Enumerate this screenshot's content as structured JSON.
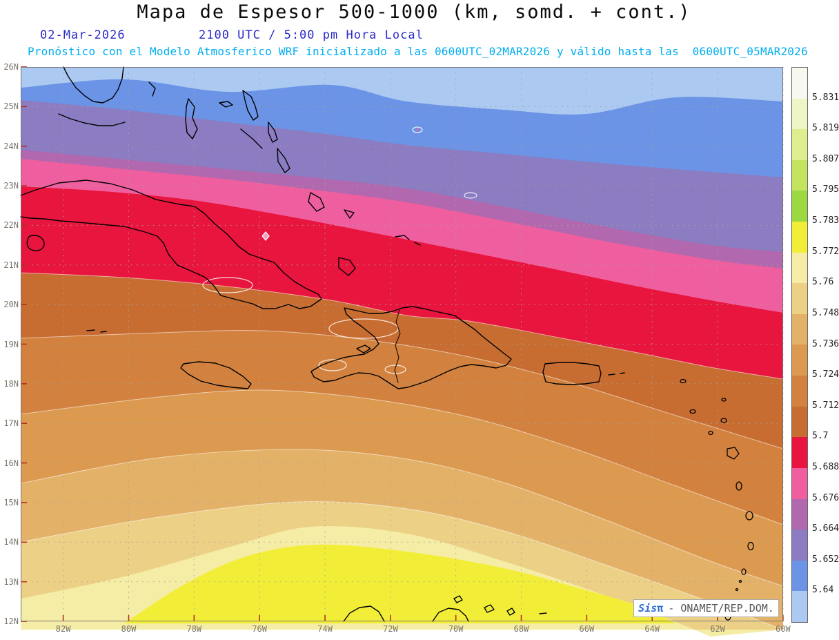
{
  "header": {
    "title": "Mapa de Espesor 500-1000 (km, somd. + cont.)",
    "date": "02-Mar-2026",
    "time": "2100 UTC / 5:00 pm Hora Local",
    "forecast": "Pronóstico con el Modelo Atmosferico WRF inicializado a las 0600UTC_02MAR2026 y válido hasta las  0600UTC_05MAR2026"
  },
  "map": {
    "lat_labels": [
      "26N",
      "25N",
      "24N",
      "23N",
      "22N",
      "21N",
      "20N",
      "19N",
      "18N",
      "17N",
      "16N",
      "15N",
      "14N",
      "13N",
      "12N"
    ],
    "lon_labels": [
      "82W",
      "80W",
      "78W",
      "76W",
      "74W",
      "72W",
      "70W",
      "68W",
      "66W",
      "64W",
      "62W",
      "60W"
    ]
  },
  "colorbar": {
    "labels": [
      "5.831",
      "5.819",
      "5.807",
      "5.795",
      "5.783",
      "5.772",
      "5.76",
      "5.748",
      "5.736",
      "5.724",
      "5.712",
      "5.7",
      "5.688",
      "5.676",
      "5.664",
      "5.652",
      "5.64"
    ],
    "colors": [
      "#f8f8f0",
      "#eef5c6",
      "#dcee8e",
      "#c3e45e",
      "#9cd840",
      "#f2ee38",
      "#f5eca6",
      "#ecd086",
      "#e3b268",
      "#dc9a50",
      "#d2823e",
      "#c86d32",
      "#e8153e",
      "#ef5f9f",
      "#b168af",
      "#8c7cc2",
      "#6b93e6",
      "#abc9f1"
    ]
  },
  "watermark": {
    "brand_prefix": "Sis",
    "brand_symbol": "π",
    "org": "- ONAMET/REP.DOM."
  }
}
